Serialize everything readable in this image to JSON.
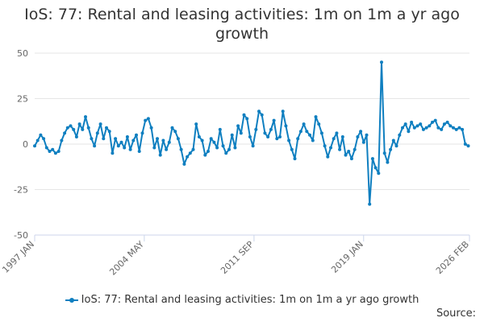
{
  "colors": {
    "series": "#0f7fc0",
    "grid": "#e6e6e6",
    "axis": "#ccd6eb",
    "text": "#333333",
    "tick": "#666666"
  },
  "chart_data": {
    "type": "line",
    "title": "IoS: 77: Rental and leasing activities: 1m on 1m a yr ago growth",
    "title_lines": [
      "IoS: 77: Rental and leasing activities: 1m on 1m a yr ago",
      "growth"
    ],
    "xlabel": "",
    "ylabel": "",
    "x_tick_labels": [
      "1997 JAN",
      "2004 MAY",
      "2011 SEP",
      "2019 JAN",
      "2026 FEB"
    ],
    "x_tick_values": [
      1997.0,
      2004.33,
      2011.67,
      2019.0,
      2026.08
    ],
    "xlim": [
      1997.0,
      2026.08
    ],
    "y_ticks": [
      50,
      25,
      0,
      -25,
      -50
    ],
    "ylim": [
      -50,
      50
    ],
    "grid": true,
    "legend_position": "bottom",
    "series": [
      {
        "name": "IoS: 77: Rental and leasing activities: 1m on 1m a yr ago growth",
        "points": [
          [
            1997.0,
            -1
          ],
          [
            1997.2,
            2
          ],
          [
            1997.4,
            5
          ],
          [
            1997.6,
            3
          ],
          [
            1997.8,
            -2
          ],
          [
            1998.0,
            -4
          ],
          [
            1998.2,
            -3
          ],
          [
            1998.4,
            -5
          ],
          [
            1998.6,
            -4
          ],
          [
            1998.8,
            2
          ],
          [
            1999.0,
            6
          ],
          [
            1999.2,
            9
          ],
          [
            1999.4,
            10
          ],
          [
            1999.6,
            8
          ],
          [
            1999.8,
            4
          ],
          [
            2000.0,
            11
          ],
          [
            2000.2,
            8
          ],
          [
            2000.4,
            15
          ],
          [
            2000.6,
            9
          ],
          [
            2000.8,
            3
          ],
          [
            2001.0,
            -1
          ],
          [
            2001.2,
            6
          ],
          [
            2001.4,
            11
          ],
          [
            2001.6,
            3
          ],
          [
            2001.8,
            9
          ],
          [
            2002.0,
            7
          ],
          [
            2002.2,
            -5
          ],
          [
            2002.4,
            3
          ],
          [
            2002.6,
            -1
          ],
          [
            2002.8,
            1
          ],
          [
            2003.0,
            -2
          ],
          [
            2003.2,
            4
          ],
          [
            2003.4,
            -3
          ],
          [
            2003.6,
            2
          ],
          [
            2003.8,
            5
          ],
          [
            2004.0,
            -4
          ],
          [
            2004.2,
            6
          ],
          [
            2004.4,
            13
          ],
          [
            2004.6,
            14
          ],
          [
            2004.8,
            9
          ],
          [
            2005.0,
            -2
          ],
          [
            2005.2,
            3
          ],
          [
            2005.4,
            -6
          ],
          [
            2005.6,
            2
          ],
          [
            2005.8,
            -3
          ],
          [
            2006.0,
            1
          ],
          [
            2006.2,
            9
          ],
          [
            2006.4,
            7
          ],
          [
            2006.6,
            3
          ],
          [
            2006.8,
            -3
          ],
          [
            2007.0,
            -11
          ],
          [
            2007.2,
            -7
          ],
          [
            2007.4,
            -5
          ],
          [
            2007.6,
            -3
          ],
          [
            2007.8,
            11
          ],
          [
            2008.0,
            4
          ],
          [
            2008.2,
            2
          ],
          [
            2008.4,
            -6
          ],
          [
            2008.6,
            -4
          ],
          [
            2008.8,
            3
          ],
          [
            2009.0,
            1
          ],
          [
            2009.2,
            -2
          ],
          [
            2009.4,
            8
          ],
          [
            2009.6,
            -1
          ],
          [
            2009.8,
            -5
          ],
          [
            2010.0,
            -3
          ],
          [
            2010.2,
            5
          ],
          [
            2010.4,
            -2
          ],
          [
            2010.6,
            10
          ],
          [
            2010.8,
            6
          ],
          [
            2011.0,
            16
          ],
          [
            2011.2,
            14
          ],
          [
            2011.4,
            4
          ],
          [
            2011.6,
            -1
          ],
          [
            2011.8,
            8
          ],
          [
            2012.0,
            18
          ],
          [
            2012.2,
            16
          ],
          [
            2012.4,
            6
          ],
          [
            2012.6,
            4
          ],
          [
            2012.8,
            8
          ],
          [
            2013.0,
            13
          ],
          [
            2013.2,
            3
          ],
          [
            2013.4,
            4
          ],
          [
            2013.6,
            18
          ],
          [
            2013.8,
            10
          ],
          [
            2014.0,
            2
          ],
          [
            2014.2,
            -3
          ],
          [
            2014.4,
            -8
          ],
          [
            2014.6,
            3
          ],
          [
            2014.8,
            7
          ],
          [
            2015.0,
            11
          ],
          [
            2015.2,
            7
          ],
          [
            2015.4,
            5
          ],
          [
            2015.6,
            2
          ],
          [
            2015.8,
            15
          ],
          [
            2016.0,
            11
          ],
          [
            2016.2,
            6
          ],
          [
            2016.4,
            -1
          ],
          [
            2016.6,
            -7
          ],
          [
            2016.8,
            -2
          ],
          [
            2017.0,
            3
          ],
          [
            2017.2,
            6
          ],
          [
            2017.4,
            -3
          ],
          [
            2017.6,
            4
          ],
          [
            2017.8,
            -6
          ],
          [
            2018.0,
            -4
          ],
          [
            2018.2,
            -8
          ],
          [
            2018.4,
            -3
          ],
          [
            2018.6,
            4
          ],
          [
            2018.8,
            7
          ],
          [
            2019.0,
            1
          ],
          [
            2019.2,
            5
          ],
          [
            2019.4,
            -33
          ],
          [
            2019.6,
            -8
          ],
          [
            2019.8,
            -13
          ],
          [
            2020.0,
            -16
          ],
          [
            2020.2,
            45
          ],
          [
            2020.4,
            -5
          ],
          [
            2020.6,
            -10
          ],
          [
            2020.8,
            -3
          ],
          [
            2021.0,
            2
          ],
          [
            2021.2,
            -1
          ],
          [
            2021.4,
            5
          ],
          [
            2021.6,
            9
          ],
          [
            2021.8,
            11
          ],
          [
            2022.0,
            7
          ],
          [
            2022.2,
            12
          ],
          [
            2022.4,
            9
          ],
          [
            2022.6,
            10
          ],
          [
            2022.8,
            11
          ],
          [
            2023.0,
            8
          ],
          [
            2023.2,
            9
          ],
          [
            2023.4,
            10
          ],
          [
            2023.6,
            12
          ],
          [
            2023.8,
            13
          ],
          [
            2024.0,
            9
          ],
          [
            2024.2,
            8
          ],
          [
            2024.4,
            11
          ],
          [
            2024.6,
            12
          ],
          [
            2024.8,
            10
          ],
          [
            2025.0,
            9
          ],
          [
            2025.2,
            8
          ],
          [
            2025.4,
            9
          ],
          [
            2025.6,
            8
          ],
          [
            2025.8,
            0
          ],
          [
            2026.0,
            -1
          ]
        ]
      }
    ]
  },
  "source_label": "Source:"
}
